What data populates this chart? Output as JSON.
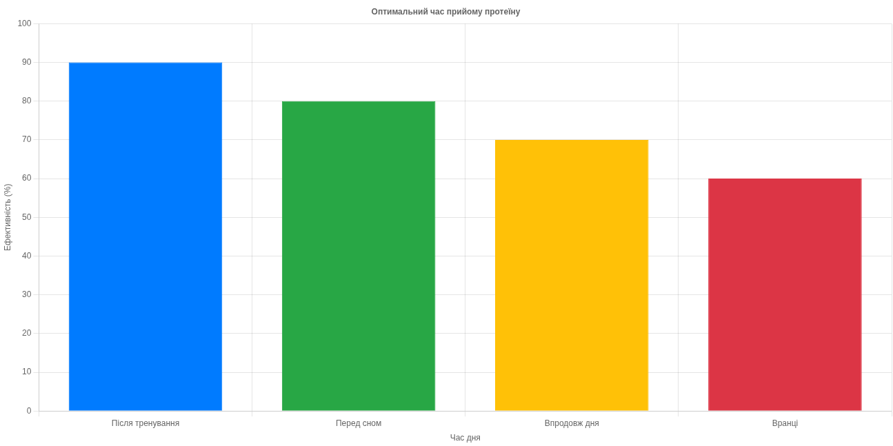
{
  "chart_data": {
    "type": "bar",
    "title": "Оптимальний час прийому протеїну",
    "xlabel": "Час дня",
    "ylabel": "Ефективність (%)",
    "categories": [
      "Після тренування",
      "Перед сном",
      "Впродовж дня",
      "Вранці"
    ],
    "values": [
      90,
      80,
      70,
      60
    ],
    "colors": [
      "#007bff",
      "#28a745",
      "#ffc107",
      "#dc3545"
    ],
    "ylim": [
      0,
      100
    ],
    "yticks": [
      0,
      10,
      20,
      30,
      40,
      50,
      60,
      70,
      80,
      90,
      100
    ],
    "grid": true,
    "legend": false
  }
}
